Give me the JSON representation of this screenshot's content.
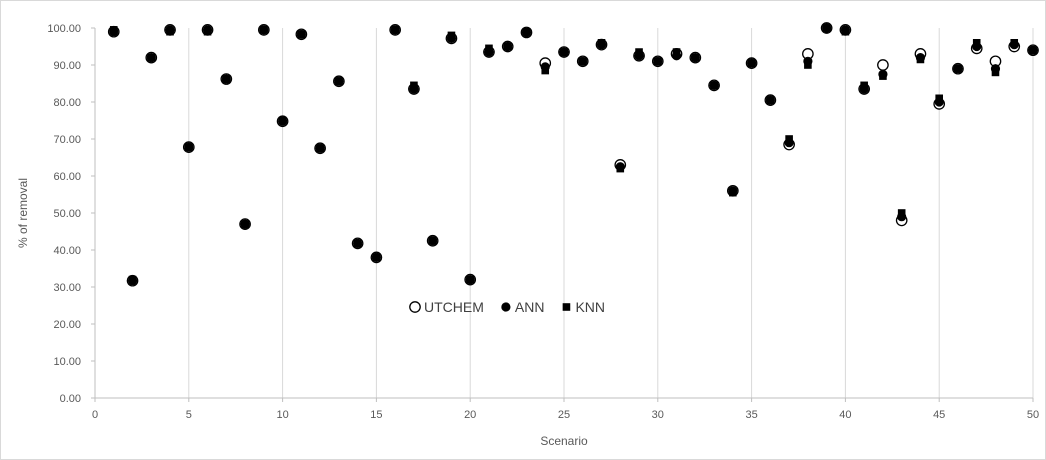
{
  "chart_data": {
    "type": "scatter",
    "title": "",
    "xlabel": "Scenario",
    "ylabel": "% of removal",
    "xlim": [
      0,
      50
    ],
    "ylim": [
      0,
      100
    ],
    "x_ticks": [
      "0",
      "5",
      "10",
      "15",
      "20",
      "25",
      "30",
      "35",
      "40",
      "45",
      "50"
    ],
    "y_ticks": [
      "0.00",
      "10.00",
      "20.00",
      "30.00",
      "40.00",
      "50.00",
      "60.00",
      "70.00",
      "80.00",
      "90.00",
      "100.00"
    ],
    "grid": "vertical",
    "legend_position": "center",
    "x": [
      1,
      2,
      3,
      4,
      5,
      6,
      7,
      8,
      9,
      10,
      11,
      12,
      13,
      14,
      15,
      16,
      17,
      18,
      19,
      20,
      21,
      22,
      23,
      24,
      25,
      26,
      27,
      28,
      29,
      30,
      31,
      32,
      33,
      34,
      35,
      36,
      37,
      38,
      39,
      40,
      41,
      42,
      43,
      44,
      45,
      46,
      47,
      48,
      49,
      50
    ],
    "series": [
      {
        "name": "UTCHEM",
        "marker": "circle-open",
        "color": "#000000",
        "values": [
          99.0,
          31.7,
          92.0,
          99.5,
          67.8,
          99.5,
          86.2,
          47.0,
          99.5,
          74.8,
          98.3,
          67.5,
          85.6,
          41.8,
          38.0,
          99.5,
          83.5,
          42.5,
          97.2,
          32.0,
          93.5,
          95.0,
          98.8,
          90.5,
          93.5,
          91.0,
          95.5,
          63.0,
          92.5,
          91.0,
          93.0,
          92.0,
          84.5,
          56.0,
          90.5,
          80.5,
          68.5,
          93.0,
          100.0,
          99.5,
          83.5,
          90.0,
          48.0,
          93.0,
          79.5,
          89.0,
          94.5,
          91.0,
          95.0,
          94.0
        ]
      },
      {
        "name": "ANN",
        "marker": "circle-filled",
        "color": "#000000",
        "values": [
          99.0,
          31.7,
          92.0,
          99.5,
          67.8,
          99.5,
          86.2,
          47.0,
          99.5,
          74.8,
          98.3,
          67.5,
          85.6,
          41.8,
          38.0,
          99.5,
          83.5,
          42.5,
          97.2,
          32.0,
          93.5,
          95.0,
          98.8,
          89.5,
          93.5,
          91.0,
          95.5,
          62.5,
          92.5,
          91.0,
          92.5,
          92.0,
          84.5,
          56.0,
          90.5,
          80.5,
          69.0,
          91.0,
          100.0,
          99.5,
          83.5,
          87.5,
          49.0,
          92.0,
          80.0,
          89.0,
          95.0,
          89.0,
          95.5,
          94.0
        ]
      },
      {
        "name": "KNN",
        "marker": "square",
        "color": "#000000",
        "values": [
          99.5,
          32.0,
          92.0,
          99.0,
          67.8,
          99.0,
          86.2,
          47.0,
          99.5,
          75.0,
          98.3,
          67.5,
          85.6,
          41.8,
          38.0,
          99.5,
          84.5,
          42.5,
          98.0,
          32.0,
          94.5,
          95.0,
          99.0,
          88.5,
          93.5,
          91.0,
          96.0,
          62.0,
          93.5,
          91.0,
          93.5,
          92.0,
          84.5,
          55.5,
          90.5,
          80.5,
          70.0,
          90.0,
          100.0,
          99.0,
          84.5,
          87.0,
          50.0,
          91.5,
          81.0,
          89.0,
          96.0,
          88.0,
          96.0,
          94.0
        ]
      }
    ]
  }
}
